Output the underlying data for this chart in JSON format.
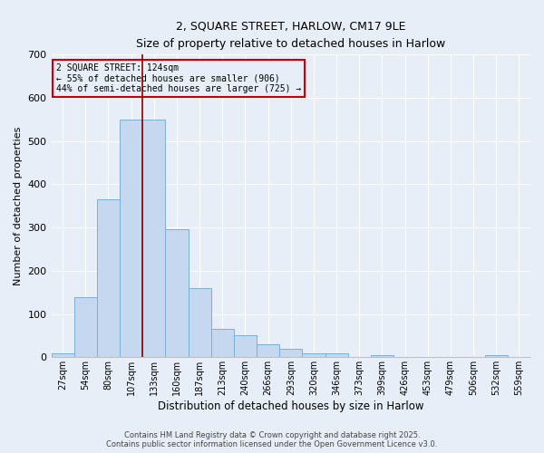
{
  "title_line1": "2, SQUARE STREET, HARLOW, CM17 9LE",
  "title_line2": "Size of property relative to detached houses in Harlow",
  "xlabel": "Distribution of detached houses by size in Harlow",
  "ylabel": "Number of detached properties",
  "categories": [
    "27sqm",
    "54sqm",
    "80sqm",
    "107sqm",
    "133sqm",
    "160sqm",
    "187sqm",
    "213sqm",
    "240sqm",
    "266sqm",
    "293sqm",
    "320sqm",
    "346sqm",
    "373sqm",
    "399sqm",
    "426sqm",
    "453sqm",
    "479sqm",
    "506sqm",
    "532sqm",
    "559sqm"
  ],
  "values": [
    8,
    138,
    365,
    550,
    550,
    295,
    160,
    65,
    50,
    30,
    20,
    10,
    10,
    0,
    5,
    0,
    0,
    0,
    0,
    5,
    0
  ],
  "bar_color": "#c5d8f0",
  "bar_edge_color": "#7aafd4",
  "bg_color": "#e8eef7",
  "grid_color": "#ffffff",
  "vline_color": "#8b0000",
  "annotation_text": "2 SQUARE STREET: 124sqm\n← 55% of detached houses are smaller (906)\n44% of semi-detached houses are larger (725) →",
  "annotation_box_color": "#cc0000",
  "ylim": [
    0,
    700
  ],
  "yticks": [
    0,
    100,
    200,
    300,
    400,
    500,
    600,
    700
  ],
  "footer_line1": "Contains HM Land Registry data © Crown copyright and database right 2025.",
  "footer_line2": "Contains public sector information licensed under the Open Government Licence v3.0.",
  "figsize": [
    6.0,
    5.0
  ],
  "dpi": 100
}
